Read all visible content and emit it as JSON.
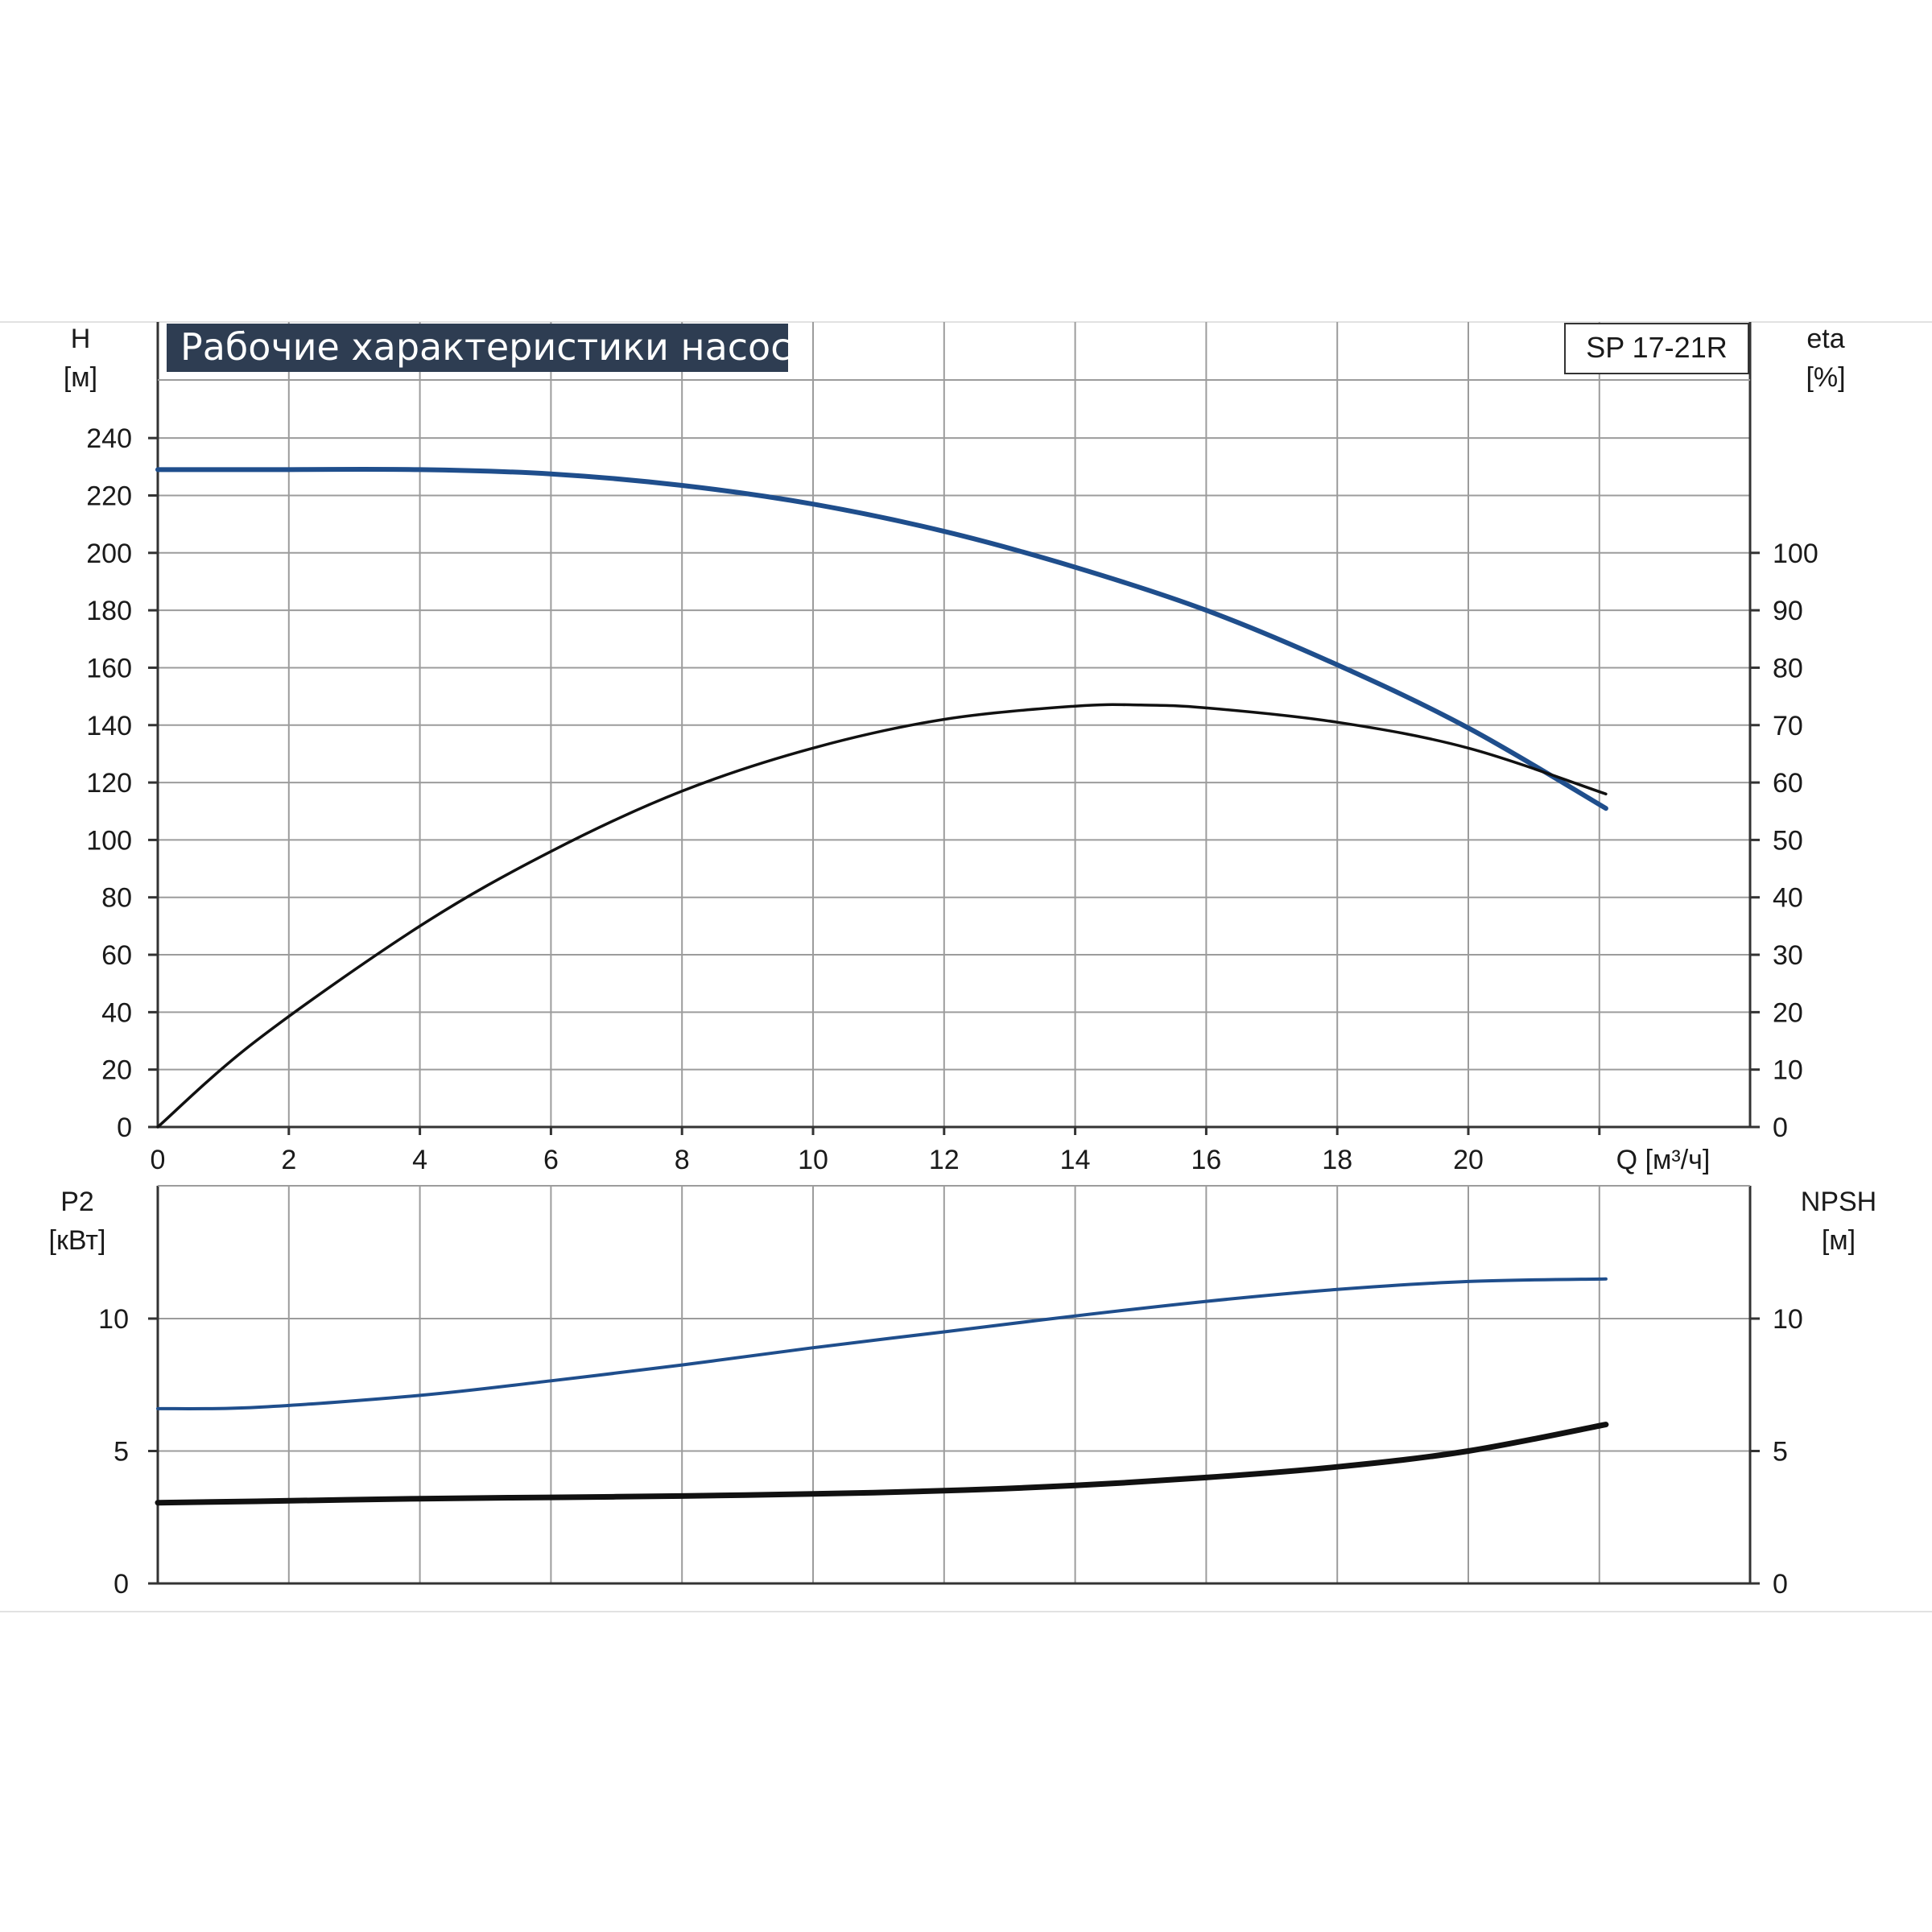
{
  "title": "Рабочие характеристики насоса",
  "model": "SP 17-21R",
  "colors": {
    "blue": "#1f4e8c",
    "black": "#111111",
    "title_bg": "#2e3d52",
    "grid": "#9c9c9c"
  },
  "upper_axes": {
    "left_label": "H",
    "left_unit": "[м]",
    "right_label": "eta",
    "right_unit": "[%]",
    "x_label": "Q [м³/ч]",
    "x_ticks": [
      "0",
      "2",
      "4",
      "6",
      "8",
      "10",
      "12",
      "14",
      "16",
      "18",
      "20"
    ],
    "left_ticks": [
      "0",
      "20",
      "40",
      "60",
      "80",
      "100",
      "120",
      "140",
      "160",
      "180",
      "200",
      "220",
      "240"
    ],
    "right_ticks": [
      "0",
      "10",
      "20",
      "30",
      "40",
      "50",
      "60",
      "70",
      "80",
      "90",
      "100"
    ]
  },
  "lower_axes": {
    "left_label": "P2",
    "left_unit": "[кВт]",
    "right_label": "NPSH",
    "right_unit": "[м]",
    "left_ticks": [
      "0",
      "5",
      "10"
    ],
    "right_ticks": [
      "0",
      "5",
      "10"
    ]
  },
  "chart_data": [
    {
      "type": "line",
      "grid": true,
      "xlim": [
        0,
        24.3
      ],
      "ylim": [
        0,
        240
      ],
      "y2lim": [
        0,
        120
      ],
      "series": [
        {
          "name": "H",
          "axis": "left",
          "color": "#1f4e8c",
          "x": [
            0,
            1.5,
            4,
            6,
            8,
            10,
            12,
            14,
            16,
            18,
            20,
            22.1
          ],
          "y": [
            229,
            229,
            229,
            227.5,
            223.5,
            217,
            207.5,
            195,
            180,
            161,
            139,
            111
          ]
        },
        {
          "name": "eta",
          "axis": "right",
          "color": "#111111",
          "x": [
            0,
            1.5,
            4,
            6,
            8,
            10,
            12,
            14,
            15,
            16,
            18,
            20,
            22.1
          ],
          "y": [
            0,
            15,
            35,
            48,
            58.5,
            66,
            71,
            73.3,
            73.5,
            73,
            70.5,
            66,
            58
          ]
        }
      ]
    },
    {
      "type": "line",
      "grid": true,
      "xlim": [
        0,
        24.3
      ],
      "ylim": [
        0,
        15
      ],
      "y2lim": [
        0,
        15
      ],
      "series": [
        {
          "name": "P2",
          "axis": "left",
          "color": "#1f4e8c",
          "x": [
            0,
            1.5,
            4,
            6,
            8,
            10,
            12,
            14,
            16,
            18,
            20,
            22.1
          ],
          "y": [
            6.6,
            6.65,
            7.1,
            7.65,
            8.25,
            8.9,
            9.5,
            10.1,
            10.65,
            11.1,
            11.4,
            11.5
          ]
        },
        {
          "name": "NPSH",
          "axis": "right",
          "color": "#111111",
          "x": [
            0,
            1.5,
            4,
            6,
            8,
            10,
            12,
            14,
            16,
            18,
            20,
            22.1
          ],
          "y": [
            3.05,
            3.1,
            3.2,
            3.25,
            3.3,
            3.38,
            3.5,
            3.7,
            4.0,
            4.4,
            5.0,
            6.0
          ]
        }
      ]
    }
  ]
}
